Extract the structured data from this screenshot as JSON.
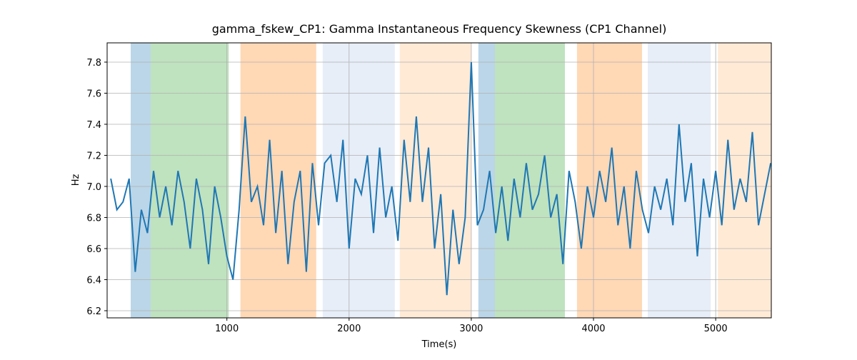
{
  "chart_data": {
    "type": "line",
    "title": "gamma_fskew_CP1: Gamma Instantaneous Frequency Skewness (CP1 Channel)",
    "xlabel": "Time(s)",
    "ylabel": "Hz",
    "x": [
      50,
      100,
      150,
      200,
      250,
      300,
      350,
      400,
      450,
      500,
      550,
      600,
      650,
      700,
      750,
      800,
      850,
      900,
      950,
      1000,
      1050,
      1100,
      1150,
      1200,
      1250,
      1300,
      1350,
      1400,
      1450,
      1500,
      1550,
      1600,
      1650,
      1700,
      1750,
      1800,
      1850,
      1900,
      1950,
      2000,
      2050,
      2100,
      2150,
      2200,
      2250,
      2300,
      2350,
      2400,
      2450,
      2500,
      2550,
      2600,
      2650,
      2700,
      2750,
      2800,
      2850,
      2900,
      2950,
      3000,
      3050,
      3100,
      3150,
      3200,
      3250,
      3300,
      3350,
      3400,
      3450,
      3500,
      3550,
      3600,
      3650,
      3700,
      3750,
      3800,
      3850,
      3900,
      3950,
      4000,
      4050,
      4100,
      4150,
      4200,
      4250,
      4300,
      4350,
      4400,
      4450,
      4500,
      4550,
      4600,
      4650,
      4700,
      4750,
      4800,
      4850,
      4900,
      4950,
      5000,
      5050,
      5100,
      5150,
      5200,
      5250,
      5300,
      5350,
      5400,
      5450
    ],
    "series": [
      {
        "name": "gamma_fskew_CP1",
        "color": "#1f77b4",
        "values": [
          7.05,
          6.85,
          6.9,
          7.05,
          6.45,
          6.85,
          6.7,
          7.1,
          6.8,
          7.0,
          6.75,
          7.1,
          6.9,
          6.6,
          7.05,
          6.85,
          6.5,
          7.0,
          6.8,
          6.55,
          6.4,
          6.85,
          7.45,
          6.9,
          7.0,
          6.75,
          7.3,
          6.7,
          7.1,
          6.5,
          6.9,
          7.1,
          6.45,
          7.15,
          6.75,
          7.15,
          7.2,
          6.9,
          7.3,
          6.6,
          7.05,
          6.95,
          7.2,
          6.7,
          7.25,
          6.8,
          7.0,
          6.65,
          7.3,
          6.9,
          7.45,
          6.9,
          7.25,
          6.6,
          6.95,
          6.3,
          6.85,
          6.5,
          6.8,
          7.8,
          6.75,
          6.85,
          7.1,
          6.7,
          7.0,
          6.65,
          7.05,
          6.8,
          7.15,
          6.85,
          6.95,
          7.2,
          6.8,
          6.95,
          6.5,
          7.1,
          6.9,
          6.6,
          7.0,
          6.8,
          7.1,
          6.9,
          7.25,
          6.75,
          7.0,
          6.6,
          7.1,
          6.85,
          6.7,
          7.0,
          6.85,
          7.05,
          6.75,
          7.4,
          6.9,
          7.15,
          6.55,
          7.05,
          6.8,
          7.1,
          6.75,
          7.3,
          6.85,
          7.05,
          6.9,
          7.35,
          6.75,
          6.95,
          7.15
        ]
      }
    ],
    "spans": [
      {
        "start": 213,
        "end": 377,
        "color": "#1f77b4"
      },
      {
        "start": 377,
        "end": 1015,
        "color": "#2ca02c"
      },
      {
        "start": 1111,
        "end": 1731,
        "color": "#ff7f0e"
      },
      {
        "start": 1784,
        "end": 2374,
        "color": "#aec7e8"
      },
      {
        "start": 2415,
        "end": 3000,
        "color": "#ffbb78"
      },
      {
        "start": 3058,
        "end": 3193,
        "color": "#1f77b4"
      },
      {
        "start": 3193,
        "end": 3766,
        "color": "#2ca02c"
      },
      {
        "start": 3865,
        "end": 4397,
        "color": "#ff7f0e"
      },
      {
        "start": 4444,
        "end": 4959,
        "color": "#aec7e8"
      },
      {
        "start": 5018,
        "end": 5455,
        "color": "#ffbb78"
      }
    ],
    "span_alpha": 0.3,
    "xlim": [
      20,
      5455
    ],
    "ylim": [
      6.154,
      7.924
    ],
    "xticks": [
      1000,
      2000,
      3000,
      4000,
      5000
    ],
    "yticks": [
      6.2,
      6.4,
      6.6,
      6.8,
      {
        "value": 7,
        "label": "7.0"
      },
      7.2,
      7.4,
      7.6,
      7.8
    ],
    "grid": true
  }
}
